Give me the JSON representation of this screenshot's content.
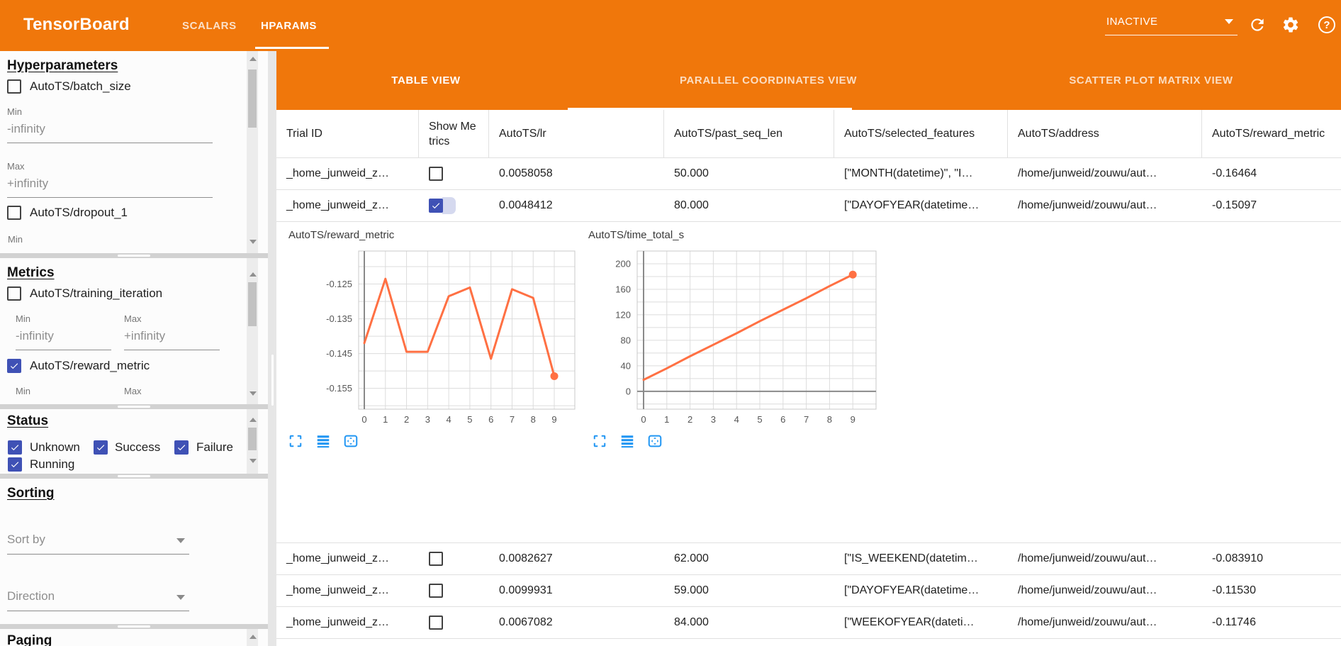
{
  "header": {
    "title": "TensorBoard",
    "nav_tabs": [
      {
        "label": "SCALARS",
        "active": false
      },
      {
        "label": "HPARAMS",
        "active": true
      }
    ],
    "run_selector_value": "INACTIVE",
    "icon_names": [
      "chevron-down-icon",
      "reload-icon",
      "settings-icon",
      "help-icon"
    ],
    "accent_color": "#f0770b"
  },
  "sidebar": {
    "hyperparameters": {
      "heading": "Hyperparameters",
      "items": [
        {
          "label": "AutoTS/batch_size",
          "checked": false
        },
        {
          "label": "AutoTS/dropout_1",
          "checked": false
        }
      ],
      "min_label": "Min",
      "max_label": "Max",
      "min_value": "-infinity",
      "max_value": "+infinity",
      "trailing_label": "Min"
    },
    "metrics": {
      "heading": "Metrics",
      "items": [
        {
          "label": "AutoTS/training_iteration",
          "checked": false
        },
        {
          "label": "AutoTS/reward_metric",
          "checked": true
        }
      ],
      "min_label": "Min",
      "max_label": "Max",
      "min_value": "-infinity",
      "max_value": "+infinity"
    },
    "status": {
      "heading": "Status",
      "options": [
        {
          "label": "Unknown",
          "checked": true
        },
        {
          "label": "Success",
          "checked": true
        },
        {
          "label": "Failure",
          "checked": true
        },
        {
          "label": "Running",
          "checked": true
        }
      ]
    },
    "sorting": {
      "heading": "Sorting",
      "sort_by_placeholder": "Sort by",
      "direction_placeholder": "Direction"
    },
    "paging": {
      "heading": "Paging"
    }
  },
  "main": {
    "view_tabs": [
      {
        "label": "TABLE VIEW",
        "active": true
      },
      {
        "label": "PARALLEL COORDINATES VIEW",
        "active": false
      },
      {
        "label": "SCATTER PLOT MATRIX VIEW",
        "active": false
      }
    ],
    "table": {
      "columns": [
        "Trial ID",
        "Show Metrics",
        "AutoTS/lr",
        "AutoTS/past_seq_len",
        "AutoTS/selected_features",
        "AutoTS/address",
        "AutoTS/reward_metric"
      ],
      "rows_top": [
        {
          "trial_id": "_home_junweid_z…",
          "show_metrics": false,
          "lr": "0.0058058",
          "past_seq_len": "50.000",
          "selected_features": "[\"MONTH(datetime)\", \"I…",
          "address": "/home/junweid/zouwu/aut…",
          "reward_metric": "-0.16464"
        },
        {
          "trial_id": "_home_junweid_z…",
          "show_metrics": true,
          "lr": "0.0048412",
          "past_seq_len": "80.000",
          "selected_features": "[\"DAYOFYEAR(datetime…",
          "address": "/home/junweid/zouwu/aut…",
          "reward_metric": "-0.15097"
        }
      ],
      "rows_bottom": [
        {
          "trial_id": "_home_junweid_z…",
          "show_metrics": false,
          "lr": "0.0082627",
          "past_seq_len": "62.000",
          "selected_features": "[\"IS_WEEKEND(datetim…",
          "address": "/home/junweid/zouwu/aut…",
          "reward_metric": "-0.083910"
        },
        {
          "trial_id": "_home_junweid_z…",
          "show_metrics": false,
          "lr": "0.0099931",
          "past_seq_len": "59.000",
          "selected_features": "[\"DAYOFYEAR(datetime…",
          "address": "/home/junweid/zouwu/aut…",
          "reward_metric": "-0.11530"
        },
        {
          "trial_id": "_home_junweid_z…",
          "show_metrics": false,
          "lr": "0.0067082",
          "past_seq_len": "84.000",
          "selected_features": "[\"WEEKOFYEAR(dateti…",
          "address": "/home/junweid/zouwu/aut…",
          "reward_metric": "-0.11746"
        }
      ]
    },
    "chart_toolbar_icon_names": [
      "fullscreen-icon",
      "rows-icon",
      "pan-icon"
    ],
    "chart_data": [
      {
        "type": "line",
        "title": "AutoTS/reward_metric",
        "x": [
          0,
          1,
          2,
          3,
          4,
          5,
          6,
          7,
          8,
          9
        ],
        "values": [
          -0.142,
          -0.1235,
          -0.1445,
          -0.1445,
          -0.1285,
          -0.126,
          -0.1465,
          -0.1265,
          -0.129,
          -0.1515
        ],
        "xlabel": "",
        "ylabel": "",
        "ylim": [
          -0.161,
          -0.1155
        ],
        "yticks": [
          -0.125,
          -0.135,
          -0.145,
          -0.155
        ],
        "ytick_labels": [
          "-0.125",
          "-0.135",
          "-0.145",
          "-0.155"
        ],
        "ygrid_step": 0.005,
        "grid": true,
        "zero_line": false,
        "line_color": "#ff7043",
        "end_dot": true
      },
      {
        "type": "line",
        "title": "AutoTS/time_total_s",
        "x": [
          0,
          1,
          2,
          3,
          4,
          5,
          6,
          7,
          8,
          9
        ],
        "values": [
          18,
          36,
          55,
          73,
          91,
          110,
          128,
          146,
          165,
          183
        ],
        "xlabel": "",
        "ylabel": "",
        "ylim": [
          -28,
          220
        ],
        "yticks": [
          0,
          40,
          80,
          120,
          160,
          200
        ],
        "ytick_labels": [
          "0",
          "40",
          "80",
          "120",
          "160",
          "200"
        ],
        "ygrid_step": 20,
        "grid": true,
        "zero_line": true,
        "line_color": "#ff7043",
        "end_dot": true
      }
    ]
  }
}
